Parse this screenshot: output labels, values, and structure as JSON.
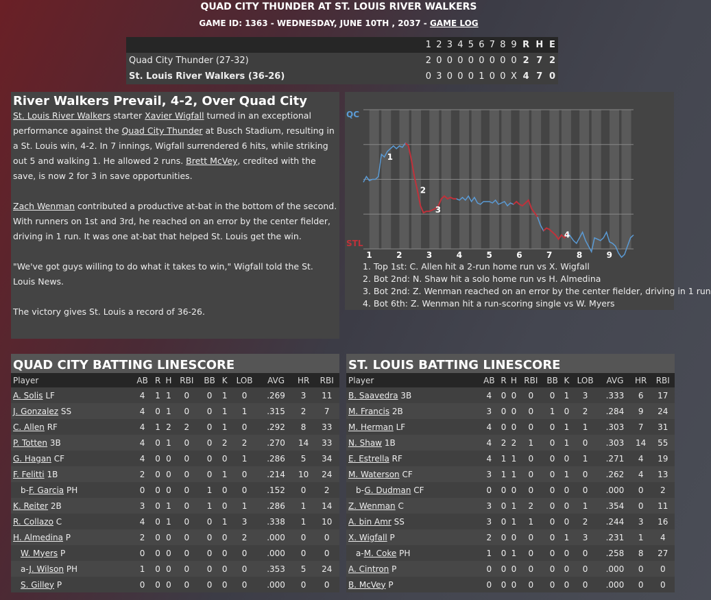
{
  "header": {
    "title": "QUAD CITY THUNDER AT ST. LOUIS RIVER WALKERS",
    "game_info": "GAME ID: 1363 - WEDNESDAY, JUNE 10TH , 2037 - ",
    "game_log_link": "GAME LOG"
  },
  "linescore": {
    "columns": [
      "1",
      "2",
      "3",
      "4",
      "5",
      "6",
      "7",
      "8",
      "9",
      "R",
      "H",
      "E"
    ],
    "rows": [
      {
        "team": "Quad City Thunder (27-32)",
        "cells": [
          "2",
          "0",
          "0",
          "0",
          "0",
          "0",
          "0",
          "0",
          "0",
          "2",
          "7",
          "2"
        ],
        "winner": false
      },
      {
        "team": "St. Louis River Walkers (36-26)",
        "cells": [
          "0",
          "3",
          "0",
          "0",
          "0",
          "1",
          "0",
          "0",
          "X",
          "4",
          "7",
          "0"
        ],
        "winner": true
      }
    ]
  },
  "story": {
    "headline": "River Walkers Prevail, 4-2, Over Quad City",
    "p1": {
      "team_link": "St. Louis River Walkers",
      "t1": " starter ",
      "pitcher_link": "Xavier Wigfall",
      "t2": " turned in an exceptional performance against the ",
      "opp_link": "Quad City Thunder",
      "t3": " at Busch Stadium, resulting in a St. Louis win, 4-2. In 7 innings, Wigfall surrendered 6 hits, while striking out 5 and walking 1. He allowed 2 runs. ",
      "closer_link": "Brett McVey",
      "t4": ", credited with the save, is now 2 for 3 in save opportunities."
    },
    "p2": {
      "player_link": "Zach Wenman",
      "t1": " contributed a productive at-bat in the bottom of the second. With runners on 1st and 3rd, he reached on an error by the center fielder, driving in 1 run. It was one at-bat that helped St. Louis get the win."
    },
    "p3": "\"We've got guys willing to do what it takes to win,\" Wigfall told the St. Louis News.",
    "p4": "The victory gives St. Louis a record of 36-26."
  },
  "chart_data": {
    "type": "line",
    "title": "",
    "top_label": "QC",
    "bottom_label": "STL",
    "top_color": "#5b9bd5",
    "bottom_color": "#c0313a",
    "x_ticks": [
      "1",
      "2",
      "3",
      "4",
      "5",
      "6",
      "7",
      "8",
      "9"
    ],
    "ylim": [
      0,
      1
    ],
    "y_gridlines": [
      0,
      0.25,
      0.5,
      0.75,
      1
    ],
    "x": [
      0,
      0.1,
      0.2,
      0.3,
      0.4,
      0.5,
      0.6,
      0.7,
      0.8,
      0.9,
      1.0,
      1.1,
      1.2,
      1.3,
      1.4,
      1.5,
      1.6,
      1.7,
      1.8,
      1.9,
      2.0,
      2.1,
      2.2,
      2.3,
      2.4,
      2.5,
      2.6,
      2.7,
      2.8,
      2.9,
      3.0,
      3.1,
      3.2,
      3.3,
      3.4,
      3.5,
      3.6,
      3.7,
      3.8,
      3.9,
      4.0,
      4.1,
      4.2,
      4.3,
      4.4,
      4.5,
      4.6,
      4.7,
      4.8,
      4.9,
      5.0,
      5.1,
      5.2,
      5.3,
      5.4,
      5.5,
      5.6,
      5.7,
      5.8,
      5.9,
      6.0,
      6.1,
      6.2,
      6.3,
      6.4,
      6.5,
      6.6,
      6.7,
      6.8,
      6.9,
      7.0,
      7.1,
      7.2,
      7.3,
      7.4,
      7.5,
      7.6,
      7.7,
      7.8,
      7.9,
      8.0,
      8.1,
      8.2,
      8.3,
      8.4,
      8.5,
      8.6,
      8.7,
      8.8,
      8.9,
      9.0
    ],
    "y": [
      0.48,
      0.52,
      0.49,
      0.5,
      0.5,
      0.52,
      0.68,
      0.66,
      0.7,
      0.72,
      0.74,
      0.72,
      0.74,
      0.73,
      0.76,
      0.74,
      0.64,
      0.52,
      0.42,
      0.31,
      0.26,
      0.27,
      0.27,
      0.28,
      0.29,
      0.31,
      0.36,
      0.38,
      0.36,
      0.37,
      0.36,
      0.36,
      0.35,
      0.37,
      0.35,
      0.38,
      0.34,
      0.37,
      0.33,
      0.32,
      0.34,
      0.34,
      0.34,
      0.33,
      0.35,
      0.32,
      0.33,
      0.34,
      0.31,
      0.33,
      0.32,
      0.34,
      0.32,
      0.31,
      0.33,
      0.35,
      0.29,
      0.26,
      0.23,
      0.17,
      0.13,
      0.15,
      0.14,
      0.12,
      0.1,
      0.07,
      0.1,
      0.08,
      0.12,
      0.09,
      0.06,
      0.04,
      0.08,
      0.12,
      0.06,
      0.02,
      -0.02,
      0.08,
      0.07,
      0.06,
      0.08,
      0.12,
      0.05,
      0.04,
      0.02,
      -0.03,
      -0.06,
      -0.04,
      0.02,
      0.08,
      0.1
    ],
    "annotations": [
      {
        "label": "1",
        "x": 0.7
      },
      {
        "label": "2",
        "x": 1.8
      },
      {
        "label": "3",
        "x": 2.3
      },
      {
        "label": "4",
        "x": 6.6
      }
    ],
    "notes": [
      "1. Top 1st: C. Allen hit a 2-run home run vs X. Wigfall",
      "2. Bot 2nd: N. Shaw hit a solo home run vs H. Almedina",
      "3. Bot 2nd: Z. Wenman reached on an error by the center fielder, driving in 1 run",
      "4. Bot 6th: Z. Wenman hit a run-scoring single vs W. Myers"
    ]
  },
  "batting": {
    "columns": [
      "Player",
      "AB",
      "R",
      "H",
      "RBI",
      "BB",
      "K",
      "LOB",
      "AVG",
      "HR",
      "RBI"
    ],
    "away": {
      "title": "QUAD CITY BATTING LINESCORE",
      "rows": [
        {
          "prefix": "",
          "name": "A. Solis",
          "pos": " LF",
          "stats": [
            "4",
            "1",
            "1",
            "0",
            "0",
            "1",
            "0",
            ".269",
            "3",
            "11"
          ]
        },
        {
          "prefix": "",
          "name": "J. Gonzalez",
          "pos": " SS",
          "stats": [
            "4",
            "0",
            "1",
            "0",
            "0",
            "1",
            "1",
            ".315",
            "2",
            "7"
          ]
        },
        {
          "prefix": "",
          "name": "C. Allen",
          "pos": " RF",
          "stats": [
            "4",
            "1",
            "2",
            "2",
            "0",
            "1",
            "0",
            ".292",
            "8",
            "33"
          ]
        },
        {
          "prefix": "",
          "name": "P. Totten",
          "pos": " 3B",
          "stats": [
            "4",
            "0",
            "1",
            "0",
            "0",
            "2",
            "2",
            ".270",
            "14",
            "33"
          ]
        },
        {
          "prefix": "",
          "name": "G. Hagan",
          "pos": " CF",
          "stats": [
            "4",
            "0",
            "0",
            "0",
            "0",
            "0",
            "1",
            ".286",
            "5",
            "34"
          ]
        },
        {
          "prefix": "",
          "name": "F. Felitti",
          "pos": " 1B",
          "stats": [
            "2",
            "0",
            "0",
            "0",
            "0",
            "1",
            "0",
            ".214",
            "10",
            "24"
          ]
        },
        {
          "prefix": "b-",
          "name": "F. Garcia",
          "pos": " PH",
          "stats": [
            "0",
            "0",
            "0",
            "0",
            "1",
            "0",
            "0",
            ".152",
            "0",
            "2"
          ]
        },
        {
          "prefix": "",
          "name": "K. Reiter",
          "pos": " 2B",
          "stats": [
            "3",
            "0",
            "1",
            "0",
            "1",
            "0",
            "1",
            ".286",
            "1",
            "14"
          ]
        },
        {
          "prefix": "",
          "name": "R. Collazo",
          "pos": " C",
          "stats": [
            "4",
            "0",
            "1",
            "0",
            "0",
            "1",
            "3",
            ".338",
            "1",
            "10"
          ]
        },
        {
          "prefix": "",
          "name": "H. Almedina",
          "pos": " P",
          "stats": [
            "2",
            "0",
            "0",
            "0",
            "0",
            "0",
            "2",
            ".000",
            "0",
            "0"
          ]
        },
        {
          "prefix": "",
          "name": "W. Myers",
          "pos": " P",
          "stats": [
            "0",
            "0",
            "0",
            "0",
            "0",
            "0",
            "0",
            ".000",
            "0",
            "0"
          ],
          "sub": true
        },
        {
          "prefix": "a-",
          "name": "J. Wilson",
          "pos": " PH",
          "stats": [
            "1",
            "0",
            "0",
            "0",
            "0",
            "0",
            "0",
            ".353",
            "5",
            "24"
          ]
        },
        {
          "prefix": "",
          "name": "S. Gilley",
          "pos": " P",
          "stats": [
            "0",
            "0",
            "0",
            "0",
            "0",
            "0",
            "0",
            ".000",
            "0",
            "0"
          ],
          "sub": true
        }
      ]
    },
    "home": {
      "title": "ST. LOUIS BATTING LINESCORE",
      "rows": [
        {
          "prefix": "",
          "name": "B. Saavedra",
          "pos": " 3B",
          "stats": [
            "4",
            "0",
            "0",
            "0",
            "0",
            "1",
            "3",
            ".333",
            "6",
            "17"
          ]
        },
        {
          "prefix": "",
          "name": "M. Francis",
          "pos": " 2B",
          "stats": [
            "3",
            "0",
            "0",
            "0",
            "1",
            "0",
            "2",
            ".284",
            "9",
            "24"
          ]
        },
        {
          "prefix": "",
          "name": "M. Herman",
          "pos": " LF",
          "stats": [
            "4",
            "0",
            "0",
            "0",
            "0",
            "1",
            "1",
            ".303",
            "7",
            "31"
          ]
        },
        {
          "prefix": "",
          "name": "N. Shaw",
          "pos": " 1B",
          "stats": [
            "4",
            "2",
            "2",
            "1",
            "0",
            "1",
            "0",
            ".303",
            "14",
            "55"
          ]
        },
        {
          "prefix": "",
          "name": "E. Estrella",
          "pos": " RF",
          "stats": [
            "4",
            "1",
            "1",
            "0",
            "0",
            "0",
            "1",
            ".271",
            "4",
            "19"
          ]
        },
        {
          "prefix": "",
          "name": "M. Waterson",
          "pos": " CF",
          "stats": [
            "3",
            "1",
            "1",
            "0",
            "0",
            "1",
            "0",
            ".262",
            "4",
            "13"
          ]
        },
        {
          "prefix": "b-",
          "name": "G. Dudman",
          "pos": " CF",
          "stats": [
            "0",
            "0",
            "0",
            "0",
            "0",
            "0",
            "0",
            ".000",
            "0",
            "2"
          ]
        },
        {
          "prefix": "",
          "name": "Z. Wenman",
          "pos": " C",
          "stats": [
            "3",
            "0",
            "1",
            "2",
            "0",
            "0",
            "1",
            ".354",
            "0",
            "11"
          ]
        },
        {
          "prefix": "",
          "name": "A. bin Amr",
          "pos": " SS",
          "stats": [
            "3",
            "0",
            "1",
            "1",
            "0",
            "0",
            "2",
            ".244",
            "3",
            "16"
          ]
        },
        {
          "prefix": "",
          "name": "X. Wigfall",
          "pos": " P",
          "stats": [
            "2",
            "0",
            "0",
            "0",
            "0",
            "1",
            "3",
            ".231",
            "1",
            "4"
          ]
        },
        {
          "prefix": "a-",
          "name": "M. Coke",
          "pos": " PH",
          "stats": [
            "1",
            "0",
            "1",
            "0",
            "0",
            "0",
            "0",
            ".258",
            "8",
            "27"
          ]
        },
        {
          "prefix": "",
          "name": "A. Cintron",
          "pos": " P",
          "stats": [
            "0",
            "0",
            "0",
            "0",
            "0",
            "0",
            "0",
            ".000",
            "0",
            "0"
          ]
        },
        {
          "prefix": "",
          "name": "B. McVey",
          "pos": " P",
          "stats": [
            "0",
            "0",
            "0",
            "0",
            "0",
            "0",
            "0",
            ".000",
            "0",
            "0"
          ]
        }
      ]
    }
  }
}
